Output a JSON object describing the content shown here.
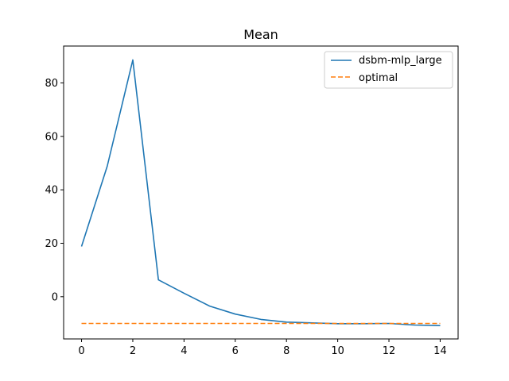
{
  "chart_data": {
    "type": "line",
    "title": "Mean",
    "xlabel": "",
    "ylabel": "",
    "xlim": [
      -0.7,
      14.7
    ],
    "ylim": [
      -15.8,
      93.8
    ],
    "xticks": [
      0,
      2,
      4,
      6,
      8,
      10,
      12,
      14
    ],
    "yticks": [
      0,
      20,
      40,
      60,
      80
    ],
    "grid": false,
    "legend_position": "top-right",
    "series": [
      {
        "name": "dsbm-mlp_large",
        "color": "#1f77b4",
        "style": "solid",
        "x": [
          0,
          1,
          2,
          3,
          4,
          5,
          6,
          7,
          8,
          9,
          10,
          11,
          12,
          13,
          14
        ],
        "values": [
          18.8,
          48.8,
          88.6,
          6.3,
          1.3,
          -3.5,
          -6.5,
          -8.5,
          -9.5,
          -9.8,
          -10.1,
          -10.1,
          -10.0,
          -10.6,
          -10.8
        ]
      },
      {
        "name": "optimal",
        "color": "#ff7f0e",
        "style": "dashed",
        "x": [
          0,
          14
        ],
        "values": [
          -10.0,
          -10.0
        ]
      }
    ]
  }
}
